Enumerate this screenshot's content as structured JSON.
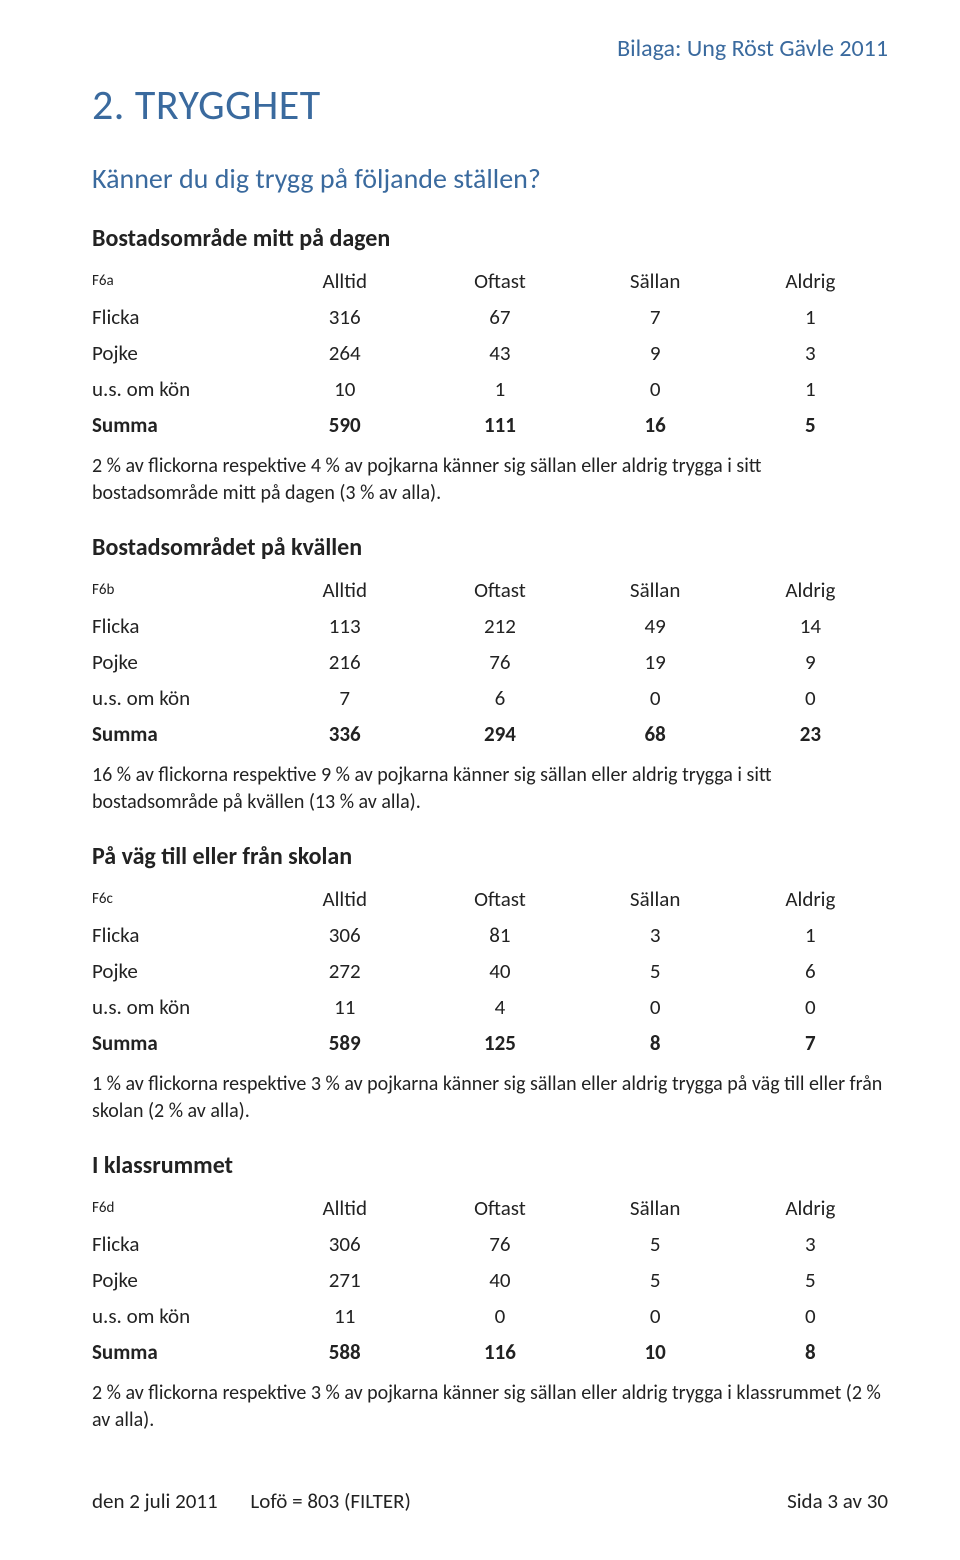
{
  "header": {
    "right": "Bilaga: Ung Röst Gävle 2011"
  },
  "section": {
    "title": "2. TRYGGHET",
    "question": "Känner du dig trygg på följande ställen?"
  },
  "blocks": [
    {
      "heading": "Bostadsområde mitt på dagen",
      "code": "F6a",
      "cols": [
        "Alltid",
        "Oftast",
        "Sällan",
        "Aldrig"
      ],
      "rows": [
        {
          "label": "Flicka",
          "v": [
            "316",
            "67",
            "7",
            "1"
          ]
        },
        {
          "label": "Pojke",
          "v": [
            "264",
            "43",
            "9",
            "3"
          ]
        },
        {
          "label": "u.s. om kön",
          "v": [
            "10",
            "1",
            "0",
            "1"
          ]
        }
      ],
      "summa": {
        "label": "Summa",
        "v": [
          "590",
          "111",
          "16",
          "5"
        ]
      },
      "note": "2 % av flickorna respektive 4 % av pojkarna känner sig sällan eller aldrig trygga i sitt bostadsområde mitt på dagen (3 % av alla)."
    },
    {
      "heading": "Bostadsområdet på kvällen",
      "code": "F6b",
      "cols": [
        "Alltid",
        "Oftast",
        "Sällan",
        "Aldrig"
      ],
      "rows": [
        {
          "label": "Flicka",
          "v": [
            "113",
            "212",
            "49",
            "14"
          ]
        },
        {
          "label": "Pojke",
          "v": [
            "216",
            "76",
            "19",
            "9"
          ]
        },
        {
          "label": "u.s. om kön",
          "v": [
            "7",
            "6",
            "0",
            "0"
          ]
        }
      ],
      "summa": {
        "label": "Summa",
        "v": [
          "336",
          "294",
          "68",
          "23"
        ]
      },
      "note": "16 % av flickorna respektive 9 % av pojkarna känner sig sällan eller aldrig trygga i sitt bostadsområde på kvällen (13 % av alla)."
    },
    {
      "heading": "På väg till eller från skolan",
      "code": "F6c",
      "cols": [
        "Alltid",
        "Oftast",
        "Sällan",
        "Aldrig"
      ],
      "rows": [
        {
          "label": "Flicka",
          "v": [
            "306",
            "81",
            "3",
            "1"
          ]
        },
        {
          "label": "Pojke",
          "v": [
            "272",
            "40",
            "5",
            "6"
          ]
        },
        {
          "label": "u.s. om kön",
          "v": [
            "11",
            "4",
            "0",
            "0"
          ]
        }
      ],
      "summa": {
        "label": "Summa",
        "v": [
          "589",
          "125",
          "8",
          "7"
        ]
      },
      "note": "1 % av flickorna respektive 3 % av pojkarna känner sig sällan eller aldrig trygga på väg till eller från skolan (2 % av alla)."
    },
    {
      "heading": "I klassrummet",
      "code": "F6d",
      "cols": [
        "Alltid",
        "Oftast",
        "Sällan",
        "Aldrig"
      ],
      "rows": [
        {
          "label": "Flicka",
          "v": [
            "306",
            "76",
            "5",
            "3"
          ]
        },
        {
          "label": "Pojke",
          "v": [
            "271",
            "40",
            "5",
            "5"
          ]
        },
        {
          "label": "u.s. om kön",
          "v": [
            "11",
            "0",
            "0",
            "0"
          ]
        }
      ],
      "summa": {
        "label": "Summa",
        "v": [
          "588",
          "116",
          "10",
          "8"
        ]
      },
      "note": "2 % av flickorna respektive 3 % av pojkarna känner sig sällan eller aldrig trygga i klassrummet (2 % av alla)."
    }
  ],
  "footer": {
    "date": "den 2 juli 2011",
    "filter": "Lofö = 803 (FILTER)",
    "page": "Sida 3 av 30"
  },
  "style": {
    "heading_color": "#3a6a9e",
    "text_color": "#222222",
    "background": "#ffffff"
  }
}
